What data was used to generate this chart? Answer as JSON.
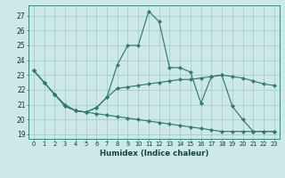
{
  "xlabel": "Humidex (Indice chaleur)",
  "bg_color": "#cce8e8",
  "line_color": "#2e7d6e",
  "grid_color": "#aacccc",
  "x_ticks": [
    0,
    1,
    2,
    3,
    4,
    5,
    6,
    7,
    8,
    9,
    10,
    11,
    12,
    13,
    14,
    15,
    16,
    17,
    18,
    19,
    20,
    21,
    22,
    23
  ],
  "y_ticks": [
    19,
    20,
    21,
    22,
    23,
    24,
    25,
    26,
    27
  ],
  "ylim": [
    18.7,
    27.7
  ],
  "xlim": [
    -0.5,
    23.5
  ],
  "series": [
    [
      23.3,
      22.5,
      21.7,
      20.9,
      20.6,
      20.5,
      20.8,
      21.5,
      23.7,
      25.0,
      25.0,
      27.3,
      26.6,
      23.5,
      23.5,
      23.2,
      21.1,
      22.9,
      23.0,
      20.9,
      20.0,
      19.2,
      19.2
    ],
    [
      23.3,
      22.5,
      21.7,
      21.0,
      20.6,
      20.5,
      20.8,
      21.5,
      22.0,
      22.2,
      22.3,
      22.5,
      22.6,
      22.7,
      22.7,
      22.8,
      22.9,
      23.0,
      22.9,
      22.8,
      22.6,
      22.4
    ],
    [
      23.3,
      22.5,
      21.7,
      20.9,
      20.5,
      20.4,
      20.3,
      20.2,
      20.1,
      20.0,
      19.9,
      19.8,
      19.7,
      19.6,
      19.5,
      19.4,
      19.3,
      19.2,
      19.2
    ]
  ],
  "series_full": [
    {
      "x": [
        0,
        1,
        2,
        3,
        4,
        5,
        6,
        7,
        8,
        9,
        10,
        11,
        12,
        13,
        14,
        15,
        16,
        17,
        18,
        19,
        20,
        21,
        22,
        23
      ],
      "y": [
        23.3,
        22.5,
        21.7,
        20.9,
        20.6,
        20.5,
        20.8,
        21.5,
        23.7,
        25.0,
        25.0,
        27.3,
        26.6,
        23.5,
        23.5,
        23.2,
        21.1,
        22.9,
        23.0,
        20.9,
        20.0,
        19.2,
        19.2,
        19.2
      ]
    },
    {
      "x": [
        0,
        1,
        2,
        3,
        4,
        5,
        6,
        7,
        8,
        9,
        10,
        11,
        12,
        13,
        14,
        15,
        16,
        17,
        18,
        19,
        20,
        21,
        22,
        23
      ],
      "y": [
        23.3,
        22.5,
        21.7,
        21.0,
        20.6,
        20.5,
        20.8,
        21.5,
        22.1,
        22.2,
        22.3,
        22.4,
        22.5,
        22.6,
        22.7,
        22.7,
        22.8,
        22.9,
        23.0,
        22.9,
        22.8,
        22.6,
        22.4,
        22.3
      ]
    },
    {
      "x": [
        0,
        1,
        2,
        3,
        4,
        5,
        6,
        7,
        8,
        9,
        10,
        11,
        12,
        13,
        14,
        15,
        16,
        17,
        18,
        19,
        20,
        21,
        22,
        23
      ],
      "y": [
        23.3,
        22.5,
        21.7,
        20.9,
        20.6,
        20.5,
        20.4,
        20.3,
        20.2,
        20.1,
        20.0,
        19.9,
        19.8,
        19.7,
        19.6,
        19.5,
        19.4,
        19.3,
        19.2,
        19.2,
        19.2,
        19.2,
        19.2,
        19.2
      ]
    }
  ]
}
